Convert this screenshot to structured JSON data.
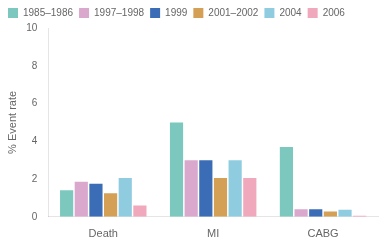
{
  "chart_data": {
    "type": "bar",
    "ylabel": "% Event rate",
    "categories": [
      "Death",
      "MI",
      "CABG"
    ],
    "series": [
      {
        "name": "1985–1986",
        "color": "#7dc8be",
        "values": [
          1.4,
          5.0,
          3.7
        ]
      },
      {
        "name": "1997–1998",
        "color": "#d9a8cc",
        "values": [
          1.85,
          3.0,
          0.4
        ]
      },
      {
        "name": "1999",
        "color": "#3a6db5",
        "values": [
          1.75,
          3.0,
          0.4
        ]
      },
      {
        "name": "2001–2002",
        "color": "#d4a055",
        "values": [
          1.25,
          2.05,
          0.28
        ]
      },
      {
        "name": "2004",
        "color": "#90cce0",
        "values": [
          2.05,
          3.0,
          0.38
        ]
      },
      {
        "name": "2006",
        "color": "#f0a8bc",
        "values": [
          0.6,
          2.05,
          0.05
        ]
      }
    ],
    "ylim": [
      0,
      10
    ],
    "yticks": [
      0,
      2,
      4,
      6,
      8,
      10
    ],
    "grid": false,
    "legend": "upper left"
  }
}
